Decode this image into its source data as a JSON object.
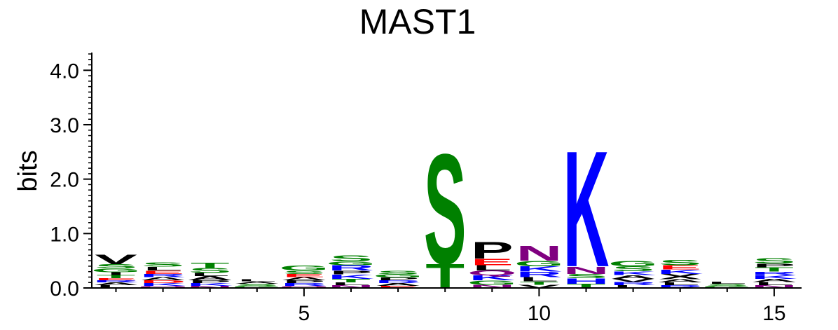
{
  "chart_data": {
    "type": "sequence-logo",
    "title": "MAST1",
    "ylabel": "bits",
    "xlabel": "",
    "ylim": [
      0,
      4.3
    ],
    "yticks": [
      "0.0",
      "1.0",
      "2.0",
      "3.0",
      "4.0"
    ],
    "ytick_values": [
      0,
      1,
      2,
      3,
      4
    ],
    "xticks": [
      "5",
      "10",
      "15"
    ],
    "xtick_values": [
      5,
      10,
      15
    ],
    "positions": [
      1,
      2,
      3,
      4,
      5,
      6,
      7,
      8,
      9,
      10,
      11,
      12,
      13,
      14,
      15
    ],
    "colors": {
      "hydrophobic": "#000000",
      "polar": "#008000",
      "basic": "#0000ff",
      "acidic": "#ff0000",
      "amide": "#800080"
    },
    "stacks": [
      {
        "pos": 1,
        "letters": [
          {
            "aa": "L",
            "h": 0.05,
            "color": "#000000"
          },
          {
            "aa": "A",
            "h": 0.05,
            "color": "#000000"
          },
          {
            "aa": "R",
            "h": 0.04,
            "color": "#0000ff"
          },
          {
            "aa": "E",
            "h": 0.04,
            "color": "#ff0000"
          },
          {
            "aa": "T",
            "h": 0.06,
            "color": "#008000"
          },
          {
            "aa": "I",
            "h": 0.05,
            "color": "#000000"
          },
          {
            "aa": "G",
            "h": 0.07,
            "color": "#008000"
          },
          {
            "aa": "S",
            "h": 0.08,
            "color": "#008000"
          },
          {
            "aa": "V",
            "h": 0.18,
            "color": "#000000"
          }
        ]
      },
      {
        "pos": 2,
        "letters": [
          {
            "aa": "Q",
            "h": 0.04,
            "color": "#800080"
          },
          {
            "aa": "K",
            "h": 0.05,
            "color": "#0000ff"
          },
          {
            "aa": "D",
            "h": 0.05,
            "color": "#ff0000"
          },
          {
            "aa": "A",
            "h": 0.06,
            "color": "#000000"
          },
          {
            "aa": "R",
            "h": 0.06,
            "color": "#0000ff"
          },
          {
            "aa": "E",
            "h": 0.06,
            "color": "#ff0000"
          },
          {
            "aa": "L",
            "h": 0.07,
            "color": "#000000"
          },
          {
            "aa": "S",
            "h": 0.08,
            "color": "#008000"
          }
        ]
      },
      {
        "pos": 3,
        "letters": [
          {
            "aa": "N",
            "h": 0.04,
            "color": "#800080"
          },
          {
            "aa": "K",
            "h": 0.05,
            "color": "#0000ff"
          },
          {
            "aa": "P",
            "h": 0.05,
            "color": "#000000"
          },
          {
            "aa": "A",
            "h": 0.08,
            "color": "#000000"
          },
          {
            "aa": "L",
            "h": 0.06,
            "color": "#000000"
          },
          {
            "aa": "S",
            "h": 0.09,
            "color": "#008000"
          },
          {
            "aa": "T",
            "h": 0.1,
            "color": "#008000"
          }
        ]
      },
      {
        "pos": 4,
        "letters": [
          {
            "aa": "G",
            "h": 0.04,
            "color": "#008000"
          },
          {
            "aa": "S",
            "h": 0.04,
            "color": "#008000"
          },
          {
            "aa": "A",
            "h": 0.04,
            "color": "#000000"
          },
          {
            "aa": "L",
            "h": 0.04,
            "color": "#000000"
          }
        ]
      },
      {
        "pos": 5,
        "letters": [
          {
            "aa": "Q",
            "h": 0.04,
            "color": "#800080"
          },
          {
            "aa": "R",
            "h": 0.05,
            "color": "#0000ff"
          },
          {
            "aa": "P",
            "h": 0.05,
            "color": "#000000"
          },
          {
            "aa": "A",
            "h": 0.06,
            "color": "#000000"
          },
          {
            "aa": "E",
            "h": 0.06,
            "color": "#ff0000"
          },
          {
            "aa": "S",
            "h": 0.06,
            "color": "#008000"
          },
          {
            "aa": "G",
            "h": 0.09,
            "color": "#008000"
          }
        ]
      },
      {
        "pos": 6,
        "letters": [
          {
            "aa": "N",
            "h": 0.05,
            "color": "#800080"
          },
          {
            "aa": "L",
            "h": 0.05,
            "color": "#000000"
          },
          {
            "aa": "T",
            "h": 0.07,
            "color": "#008000"
          },
          {
            "aa": "K",
            "h": 0.08,
            "color": "#0000ff"
          },
          {
            "aa": "P",
            "h": 0.07,
            "color": "#000000"
          },
          {
            "aa": "R",
            "h": 0.1,
            "color": "#0000ff"
          },
          {
            "aa": "G",
            "h": 0.07,
            "color": "#008000"
          },
          {
            "aa": "S",
            "h": 0.11,
            "color": "#008000"
          }
        ]
      },
      {
        "pos": 7,
        "letters": [
          {
            "aa": "E",
            "h": 0.04,
            "color": "#ff0000"
          },
          {
            "aa": "A",
            "h": 0.05,
            "color": "#000000"
          },
          {
            "aa": "R",
            "h": 0.05,
            "color": "#0000ff"
          },
          {
            "aa": "P",
            "h": 0.05,
            "color": "#000000"
          },
          {
            "aa": "G",
            "h": 0.06,
            "color": "#008000"
          },
          {
            "aa": "S",
            "h": 0.07,
            "color": "#008000"
          }
        ]
      },
      {
        "pos": 8,
        "letters": [
          {
            "aa": "T",
            "h": 0.45,
            "color": "#008000"
          },
          {
            "aa": "S",
            "h": 2.07,
            "color": "#008000"
          }
        ]
      },
      {
        "pos": 9,
        "letters": [
          {
            "aa": "N",
            "h": 0.06,
            "color": "#800080"
          },
          {
            "aa": "G",
            "h": 0.08,
            "color": "#008000"
          },
          {
            "aa": "K",
            "h": 0.09,
            "color": "#0000ff"
          },
          {
            "aa": "Q",
            "h": 0.09,
            "color": "#800080"
          },
          {
            "aa": "L",
            "h": 0.1,
            "color": "#000000"
          },
          {
            "aa": "E",
            "h": 0.12,
            "color": "#ff0000"
          },
          {
            "aa": "P",
            "h": 0.32,
            "color": "#000000"
          }
        ]
      },
      {
        "pos": 10,
        "letters": [
          {
            "aa": "V",
            "h": 0.06,
            "color": "#000000"
          },
          {
            "aa": "T",
            "h": 0.06,
            "color": "#008000"
          },
          {
            "aa": "L",
            "h": 0.08,
            "color": "#000000"
          },
          {
            "aa": "R",
            "h": 0.1,
            "color": "#0000ff"
          },
          {
            "aa": "K",
            "h": 0.1,
            "color": "#0000ff"
          },
          {
            "aa": "G",
            "h": 0.1,
            "color": "#008000"
          },
          {
            "aa": "N",
            "h": 0.28,
            "color": "#800080"
          }
        ]
      },
      {
        "pos": 11,
        "letters": [
          {
            "aa": "T",
            "h": 0.08,
            "color": "#008000"
          },
          {
            "aa": "H",
            "h": 0.1,
            "color": "#0000ff"
          },
          {
            "aa": "S",
            "h": 0.08,
            "color": "#008000"
          },
          {
            "aa": "N",
            "h": 0.14,
            "color": "#800080"
          },
          {
            "aa": "K",
            "h": 2.18,
            "color": "#0000ff"
          }
        ]
      },
      {
        "pos": 12,
        "letters": [
          {
            "aa": "L",
            "h": 0.05,
            "color": "#000000"
          },
          {
            "aa": "R",
            "h": 0.06,
            "color": "#0000ff"
          },
          {
            "aa": "V",
            "h": 0.06,
            "color": "#000000"
          },
          {
            "aa": "A",
            "h": 0.07,
            "color": "#000000"
          },
          {
            "aa": "K",
            "h": 0.07,
            "color": "#0000ff"
          },
          {
            "aa": "S",
            "h": 0.09,
            "color": "#008000"
          },
          {
            "aa": "G",
            "h": 0.1,
            "color": "#008000"
          }
        ]
      },
      {
        "pos": 13,
        "letters": [
          {
            "aa": "R",
            "h": 0.05,
            "color": "#0000ff"
          },
          {
            "aa": "L",
            "h": 0.05,
            "color": "#000000"
          },
          {
            "aa": "A",
            "h": 0.06,
            "color": "#000000"
          },
          {
            "aa": "X",
            "h": 0.1,
            "color": "#000000"
          },
          {
            "aa": "K",
            "h": 0.08,
            "color": "#0000ff"
          },
          {
            "aa": "E",
            "h": 0.08,
            "color": "#ff0000"
          },
          {
            "aa": "S",
            "h": 0.1,
            "color": "#008000"
          }
        ]
      },
      {
        "pos": 14,
        "letters": [
          {
            "aa": "G",
            "h": 0.04,
            "color": "#008000"
          },
          {
            "aa": "S",
            "h": 0.04,
            "color": "#008000"
          },
          {
            "aa": "L",
            "h": 0.04,
            "color": "#000000"
          }
        ]
      },
      {
        "pos": 15,
        "letters": [
          {
            "aa": "N",
            "h": 0.05,
            "color": "#800080"
          },
          {
            "aa": "L",
            "h": 0.06,
            "color": "#000000"
          },
          {
            "aa": "A",
            "h": 0.06,
            "color": "#000000"
          },
          {
            "aa": "K",
            "h": 0.07,
            "color": "#0000ff"
          },
          {
            "aa": "R",
            "h": 0.06,
            "color": "#0000ff"
          },
          {
            "aa": "T",
            "h": 0.08,
            "color": "#008000"
          },
          {
            "aa": "P",
            "h": 0.07,
            "color": "#000000"
          },
          {
            "aa": "S",
            "h": 0.1,
            "color": "#008000"
          }
        ]
      }
    ]
  }
}
